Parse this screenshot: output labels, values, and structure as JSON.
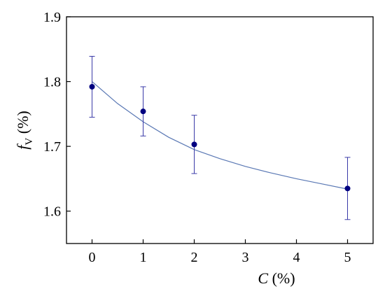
{
  "chart_data": {
    "type": "scatter",
    "xlabel": {
      "var": "C",
      "unit": " (%)"
    },
    "ylabel": {
      "var": "f",
      "sub": "V",
      "unit": " (%)"
    },
    "xlim": [
      -0.5,
      5.5
    ],
    "ylim": [
      1.55,
      1.9
    ],
    "x_ticks": [
      {
        "value": 0,
        "label": "0"
      },
      {
        "value": 1,
        "label": "1"
      },
      {
        "value": 2,
        "label": "2"
      },
      {
        "value": 3,
        "label": "3"
      },
      {
        "value": 4,
        "label": "4"
      },
      {
        "value": 5,
        "label": "5"
      }
    ],
    "y_ticks": [
      {
        "value": 1.6,
        "label": "1.6"
      },
      {
        "value": 1.7,
        "label": "1.7"
      },
      {
        "value": 1.8,
        "label": "1.8"
      },
      {
        "value": 1.9,
        "label": "1.9"
      }
    ],
    "grid": false,
    "series": [
      {
        "points": [
          {
            "x": 0,
            "y": 1.792,
            "err_low": 1.745,
            "err_high": 1.839
          },
          {
            "x": 1,
            "y": 1.754,
            "err_low": 1.716,
            "err_high": 1.792
          },
          {
            "x": 2,
            "y": 1.703,
            "err_low": 1.658,
            "err_high": 1.748
          },
          {
            "x": 5,
            "y": 1.635,
            "err_low": 1.587,
            "err_high": 1.683
          }
        ],
        "marker_color": "#000080",
        "errorbar_color": "#3a3aa8"
      }
    ],
    "fit_curve": {
      "x": [
        0,
        0.5,
        1,
        1.5,
        2,
        2.5,
        3,
        3.5,
        4,
        4.5,
        5
      ],
      "y": [
        1.8,
        1.766,
        1.738,
        1.714,
        1.695,
        1.681,
        1.669,
        1.659,
        1.65,
        1.642,
        1.634
      ],
      "color": "#5a78b4"
    },
    "colors": {
      "axis": "#000000"
    }
  }
}
